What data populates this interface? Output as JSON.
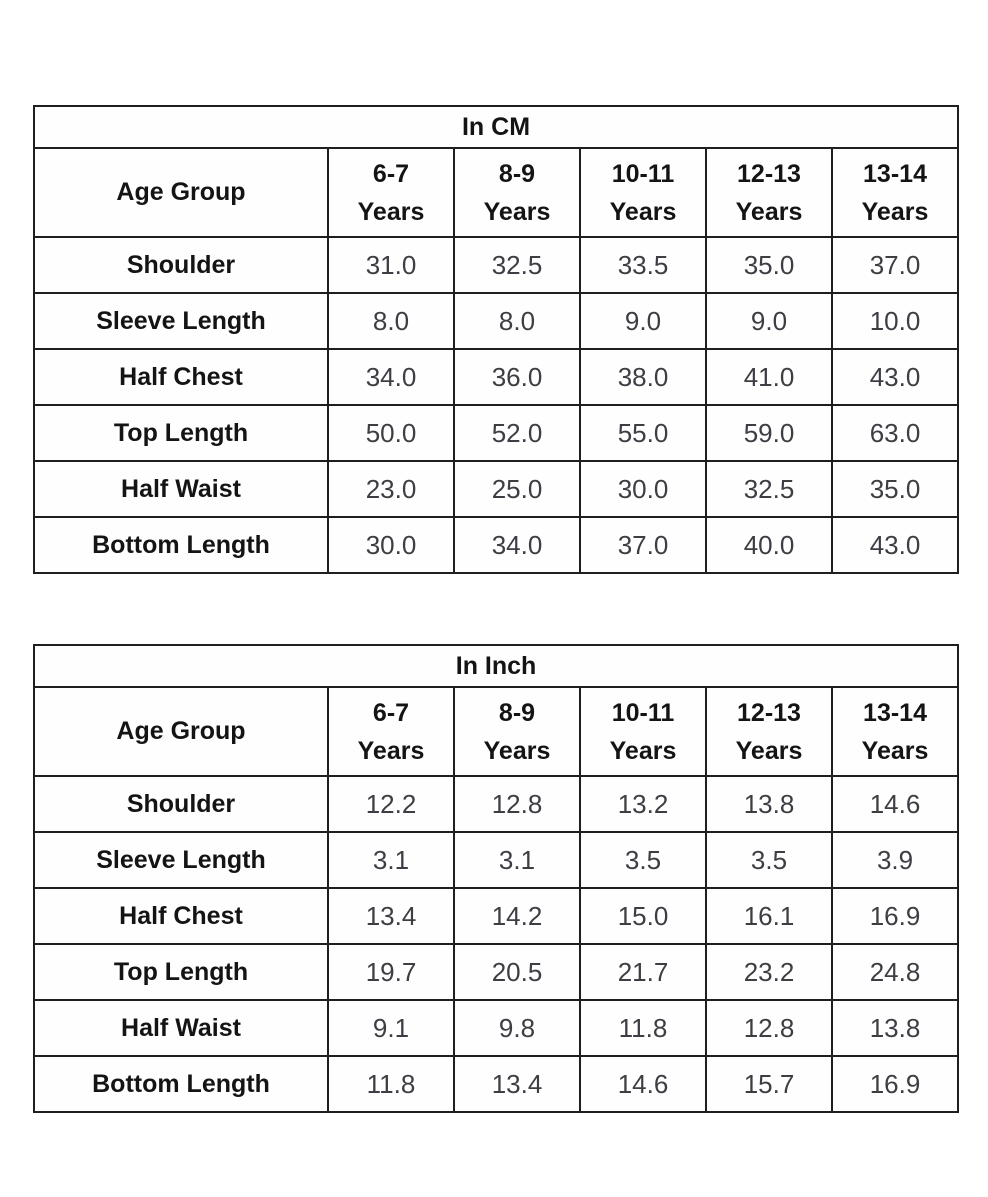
{
  "page": {
    "background_color": "#ffffff",
    "border_color": "#1f1f1f",
    "label_color": "#141414",
    "value_color": "#3d3d44"
  },
  "tables": [
    {
      "title": "In CM",
      "corner_label": "Age Group",
      "columns": [
        {
          "range": "6-7",
          "unit": "Years"
        },
        {
          "range": "8-9",
          "unit": "Years"
        },
        {
          "range": "10-11",
          "unit": "Years"
        },
        {
          "range": "12-13",
          "unit": "Years"
        },
        {
          "range": "13-14",
          "unit": "Years"
        }
      ],
      "rows": [
        {
          "label": "Shoulder",
          "values": [
            "31.0",
            "32.5",
            "33.5",
            "35.0",
            "37.0"
          ]
        },
        {
          "label": "Sleeve Length",
          "values": [
            "8.0",
            "8.0",
            "9.0",
            "9.0",
            "10.0"
          ]
        },
        {
          "label": "Half Chest",
          "values": [
            "34.0",
            "36.0",
            "38.0",
            "41.0",
            "43.0"
          ]
        },
        {
          "label": "Top Length",
          "values": [
            "50.0",
            "52.0",
            "55.0",
            "59.0",
            "63.0"
          ]
        },
        {
          "label": "Half Waist",
          "values": [
            "23.0",
            "25.0",
            "30.0",
            "32.5",
            "35.0"
          ]
        },
        {
          "label": "Bottom Length",
          "values": [
            "30.0",
            "34.0",
            "37.0",
            "40.0",
            "43.0"
          ]
        }
      ]
    },
    {
      "title": "In Inch",
      "corner_label": "Age Group",
      "columns": [
        {
          "range": "6-7",
          "unit": "Years"
        },
        {
          "range": "8-9",
          "unit": "Years"
        },
        {
          "range": "10-11",
          "unit": "Years"
        },
        {
          "range": "12-13",
          "unit": "Years"
        },
        {
          "range": "13-14",
          "unit": "Years"
        }
      ],
      "rows": [
        {
          "label": "Shoulder",
          "values": [
            "12.2",
            "12.8",
            "13.2",
            "13.8",
            "14.6"
          ]
        },
        {
          "label": "Sleeve Length",
          "values": [
            "3.1",
            "3.1",
            "3.5",
            "3.5",
            "3.9"
          ]
        },
        {
          "label": "Half Chest",
          "values": [
            "13.4",
            "14.2",
            "15.0",
            "16.1",
            "16.9"
          ]
        },
        {
          "label": "Top Length",
          "values": [
            "19.7",
            "20.5",
            "21.7",
            "23.2",
            "24.8"
          ]
        },
        {
          "label": "Half Waist",
          "values": [
            "9.1",
            "9.8",
            "11.8",
            "12.8",
            "13.8"
          ]
        },
        {
          "label": "Bottom Length",
          "values": [
            "11.8",
            "13.4",
            "14.6",
            "15.7",
            "16.9"
          ]
        }
      ]
    }
  ]
}
